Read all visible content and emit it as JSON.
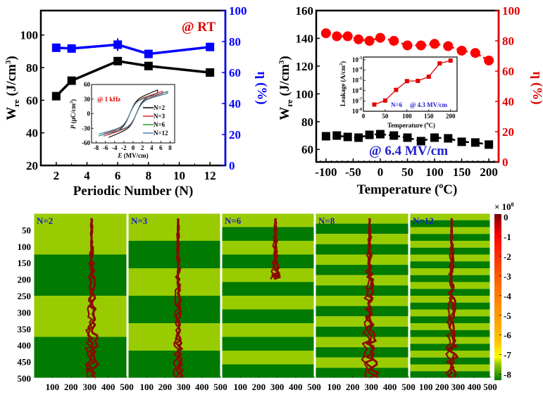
{
  "chart_data": [
    {
      "id": "panel-a",
      "type": "line",
      "x": [
        2,
        3,
        6,
        8,
        12
      ],
      "xlabel": "Periodic Number (N)",
      "xlim": [
        1,
        13
      ],
      "xticks": [
        2,
        4,
        6,
        8,
        10,
        12
      ],
      "ylabel_main": "W",
      "ylabel_sub": "re",
      "ylabel_rest": " (J/cm",
      "ylabel_sup": "3",
      "ylabel_end": ")",
      "ylim": [
        20,
        115
      ],
      "yticks": [
        20,
        40,
        60,
        80,
        100
      ],
      "y2label": "η (%)",
      "y2lim": [
        0,
        100
      ],
      "y2ticks": [
        0,
        20,
        40,
        60,
        80,
        100
      ],
      "annotation": "@ RT",
      "series": [
        {
          "name": "Wre",
          "axis": "left",
          "color": "#000000",
          "marker": "square",
          "values": [
            62.5,
            72,
            84,
            81,
            77
          ]
        },
        {
          "name": "η",
          "axis": "right",
          "color": "#0000ff",
          "marker": "square",
          "values": [
            76,
            75.5,
            78,
            72,
            76.5
          ]
        }
      ],
      "inset": {
        "type": "line",
        "annotation": "@ 1 kHz",
        "xlabel_italic": "E",
        "xlabel_rest": " (MV/cm)",
        "ylabel_italic": "P",
        "ylabel_rest": " (μC/cm",
        "ylabel_sup": "2",
        "ylabel_end": ")",
        "xlim": [
          -9,
          9
        ],
        "ylim": [
          -60,
          60
        ],
        "xticks": [
          -8,
          -6,
          -4,
          -2,
          0,
          2,
          4,
          6,
          8
        ],
        "yticks": [
          -60,
          -30,
          0,
          30,
          60
        ],
        "series": [
          {
            "name": "N=2",
            "color": "#000000",
            "emax": 5.3,
            "pmax": 46
          },
          {
            "name": "N=3",
            "color": "#d62728",
            "emax": 6.4,
            "pmax": 44
          },
          {
            "name": "N=6",
            "color": "#2ca02c",
            "emax": 7.5,
            "pmax": 44
          },
          {
            "name": "N=12",
            "color": "#4a7fb0",
            "emax": 7.2,
            "pmax": 43
          }
        ]
      }
    },
    {
      "id": "panel-b",
      "type": "line",
      "x": [
        -100,
        -80,
        -60,
        -40,
        -20,
        0,
        25,
        50,
        75,
        100,
        125,
        150,
        175,
        200
      ],
      "xlabel": "Temperature (",
      "xlabel_sup": "o",
      "xlabel_end": "C)",
      "xlim": [
        -118,
        218
      ],
      "xticks": [
        -100,
        -50,
        0,
        50,
        100,
        150,
        200
      ],
      "ylabel_main": "W",
      "ylabel_sub": "re",
      "ylabel_rest": " (J/cm",
      "ylabel_sup": "3",
      "ylabel_end": ")",
      "ylim": [
        51,
        160
      ],
      "yticks": [
        60,
        80,
        100,
        120,
        140,
        160
      ],
      "y2label": "η (%)",
      "y2lim": [
        0,
        100
      ],
      "y2ticks": [
        0,
        20,
        40,
        60,
        80,
        100
      ],
      "annotation": "@ 6.4 MV/cm",
      "series": [
        {
          "name": "Wre",
          "axis": "left",
          "color": "#000000",
          "marker": "square",
          "values": [
            69.5,
            70,
            69,
            68.5,
            70.5,
            71,
            70,
            68.5,
            66,
            68.5,
            68,
            65.5,
            65,
            63.5
          ]
        },
        {
          "name": "η",
          "axis": "right",
          "color": "#ff0000",
          "marker": "circle",
          "values": [
            85,
            83,
            83,
            81,
            80,
            82,
            80,
            77,
            77,
            78,
            76.5,
            73.5,
            72,
            67
          ]
        }
      ],
      "inset": {
        "type": "line",
        "yscale": "log",
        "xlabel": "Temperature (",
        "xlabel_sup": "o",
        "xlabel_end": "C)",
        "ylabel": "Leakage (A/cm",
        "ylabel_sup": "2",
        "ylabel_end": ")",
        "annotation_left": "N=6",
        "annotation_right": "@ 4.3 MV/cm",
        "xlim": [
          0,
          215
        ],
        "xticks": [
          0,
          50,
          100,
          150,
          200
        ],
        "ylim_exp": [
          -8,
          -3
        ],
        "yticks_exp": [
          -8,
          -7,
          -6,
          -5,
          -4,
          -3
        ],
        "x": [
          25,
          50,
          75,
          100,
          125,
          150,
          175,
          200
        ],
        "values": [
          4.5e-08,
          1.1e-07,
          1.2e-06,
          8.5e-06,
          9e-06,
          2.3e-05,
          0.00045,
          0.00085
        ],
        "color": "#e00000"
      }
    },
    {
      "id": "panel-c",
      "type": "heatmap",
      "xticks": [
        100,
        200,
        300,
        400,
        500
      ],
      "yticks": [
        50,
        100,
        150,
        200,
        250,
        300,
        350,
        400,
        450,
        500
      ],
      "xlim": [
        0,
        500
      ],
      "ylim": [
        0,
        500
      ],
      "colors": {
        "light_layer": "#99cc00",
        "dark_layer": "#007a00",
        "tree": "#8b0a00"
      },
      "panels": [
        {
          "label": "N=2",
          "layers": 4,
          "first": "light",
          "tree_x": 310,
          "tree_top": 15,
          "tree_bottom": 500,
          "spread": 45
        },
        {
          "label": "N=3",
          "layers": 6,
          "first": "light",
          "tree_x": 270,
          "tree_top": 15,
          "tree_bottom": 500,
          "spread": 30
        },
        {
          "label": "N=6",
          "layers": 12,
          "first": "light",
          "tree_x": 290,
          "tree_top": 15,
          "tree_bottom": 200,
          "spread": 25
        },
        {
          "label": "N=8",
          "layers": 16,
          "first": "light",
          "tree_x": 290,
          "tree_top": 15,
          "tree_bottom": 500,
          "spread": 55
        },
        {
          "label": "N=12",
          "layers": 24,
          "first": "light",
          "tree_x": 260,
          "tree_top": 15,
          "tree_bottom": 500,
          "spread": 45
        }
      ],
      "colorbar": {
        "multiplier": "× 10",
        "multiplier_sup": "8",
        "ticks": [
          "0",
          "-1",
          "-2",
          "-3",
          "-4",
          "-5",
          "-6",
          "-7",
          "-8"
        ],
        "range": [
          -8.3,
          0
        ]
      }
    }
  ]
}
